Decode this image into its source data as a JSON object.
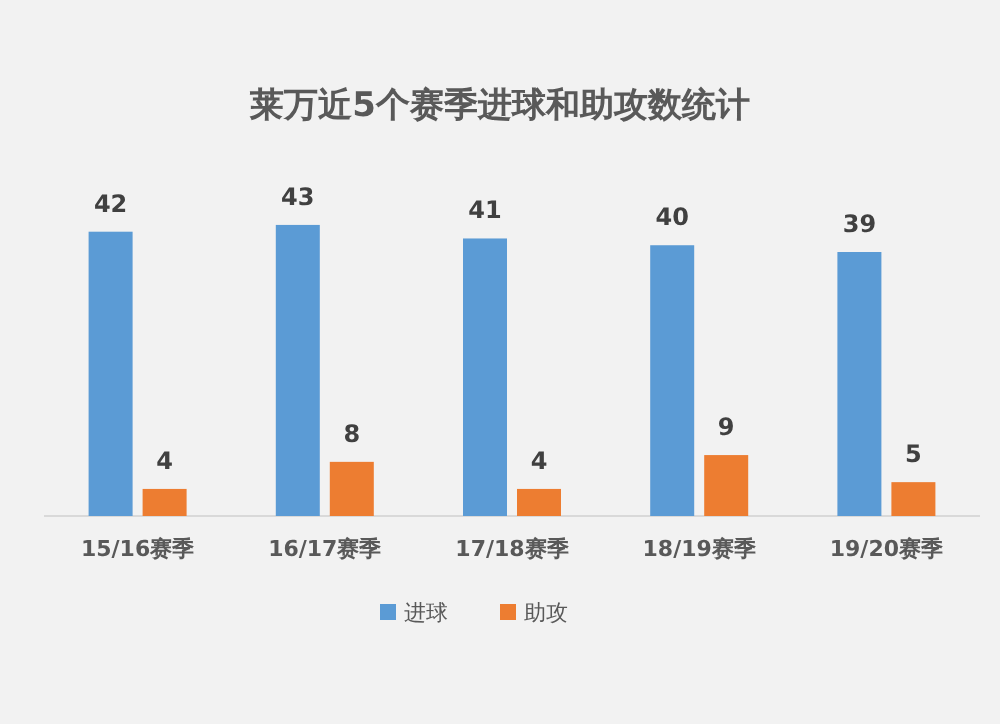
{
  "chart_data": {
    "type": "bar",
    "title": "莱万近5个赛季进球和助攻数统计",
    "categories": [
      "15/16赛季",
      "16/17赛季",
      "17/18赛季",
      "18/19赛季",
      "19/20赛季"
    ],
    "series": [
      {
        "name": "进球",
        "color": "#5b9bd5",
        "values": [
          42,
          43,
          41,
          40,
          39
        ]
      },
      {
        "name": "助攻",
        "color": "#ed7d31",
        "values": [
          4,
          8,
          4,
          9,
          5
        ]
      }
    ],
    "data_labels": true,
    "legend": "bottom"
  }
}
